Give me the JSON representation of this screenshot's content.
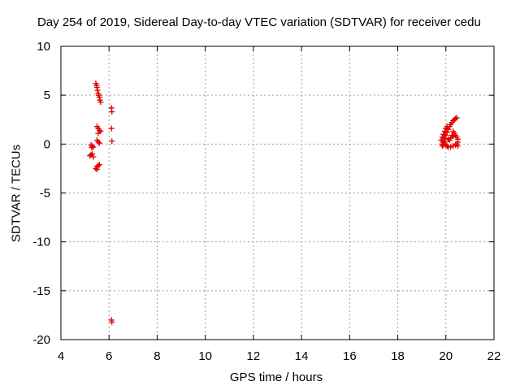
{
  "chart_data": {
    "type": "scatter",
    "title": "Day 254 of 2019, Sidereal Day-to-day VTEC variation (SDTVAR) for receiver cedu",
    "xlabel": "GPS time / hours",
    "ylabel": "SDTVAR / TECUs",
    "xlim": [
      4,
      22
    ],
    "ylim": [
      -20,
      10
    ],
    "xticks": [
      4,
      6,
      8,
      10,
      12,
      14,
      16,
      18,
      20,
      22
    ],
    "yticks": [
      -20,
      -15,
      -10,
      -5,
      0,
      5,
      10
    ],
    "grid": true,
    "marker": "+",
    "color": "#e00000",
    "series": [
      {
        "name": "SDTVAR",
        "points": [
          [
            5.45,
            6.2
          ],
          [
            5.48,
            6.0
          ],
          [
            5.5,
            5.8
          ],
          [
            5.52,
            5.5
          ],
          [
            5.55,
            5.2
          ],
          [
            5.57,
            5.0
          ],
          [
            5.6,
            4.8
          ],
          [
            5.62,
            4.5
          ],
          [
            5.65,
            4.3
          ],
          [
            5.5,
            1.8
          ],
          [
            5.55,
            1.6
          ],
          [
            5.6,
            1.4
          ],
          [
            5.65,
            1.3
          ],
          [
            5.55,
            1.1
          ],
          [
            5.5,
            0.4
          ],
          [
            5.55,
            0.2
          ],
          [
            5.6,
            0.1
          ],
          [
            5.25,
            -0.1
          ],
          [
            5.3,
            -0.2
          ],
          [
            5.35,
            -0.3
          ],
          [
            5.28,
            -0.35
          ],
          [
            5.2,
            -1.2
          ],
          [
            5.25,
            -1.1
          ],
          [
            5.3,
            -1.0
          ],
          [
            5.35,
            -1.3
          ],
          [
            5.45,
            -2.5
          ],
          [
            5.5,
            -2.3
          ],
          [
            5.55,
            -2.2
          ],
          [
            5.6,
            -2.1
          ],
          [
            5.5,
            -2.6
          ],
          [
            6.1,
            3.7
          ],
          [
            6.12,
            3.3
          ],
          [
            6.1,
            1.6
          ],
          [
            6.12,
            0.3
          ],
          [
            6.1,
            -18.0
          ],
          [
            6.12,
            -18.2
          ],
          [
            19.85,
            0.0
          ],
          [
            19.9,
            0.3
          ],
          [
            19.95,
            0.6
          ],
          [
            20.0,
            0.9
          ],
          [
            20.05,
            1.2
          ],
          [
            20.1,
            1.5
          ],
          [
            20.15,
            1.8
          ],
          [
            20.2,
            2.0
          ],
          [
            20.25,
            2.2
          ],
          [
            20.3,
            2.4
          ],
          [
            20.35,
            2.5
          ],
          [
            20.4,
            2.6
          ],
          [
            20.45,
            2.7
          ],
          [
            19.8,
            0.4
          ],
          [
            19.85,
            0.7
          ],
          [
            19.9,
            1.0
          ],
          [
            19.95,
            1.3
          ],
          [
            20.0,
            1.6
          ],
          [
            20.05,
            1.8
          ],
          [
            20.3,
            1.3
          ],
          [
            20.35,
            1.1
          ],
          [
            20.4,
            0.9
          ],
          [
            20.45,
            0.7
          ],
          [
            20.5,
            0.5
          ],
          [
            20.5,
            0.2
          ],
          [
            20.0,
            -0.1
          ],
          [
            20.05,
            -0.2
          ],
          [
            20.1,
            -0.3
          ],
          [
            20.2,
            -0.3
          ],
          [
            20.3,
            -0.2
          ],
          [
            20.4,
            -0.1
          ],
          [
            20.45,
            0.0
          ],
          [
            20.5,
            -0.2
          ],
          [
            19.85,
            -0.2
          ],
          [
            19.9,
            -0.1
          ],
          [
            19.95,
            0.2
          ],
          [
            20.1,
            0.5
          ],
          [
            20.15,
            0.4
          ],
          [
            20.2,
            0.6
          ],
          [
            20.25,
            0.9
          ],
          [
            20.3,
            0.8
          ]
        ]
      }
    ]
  }
}
